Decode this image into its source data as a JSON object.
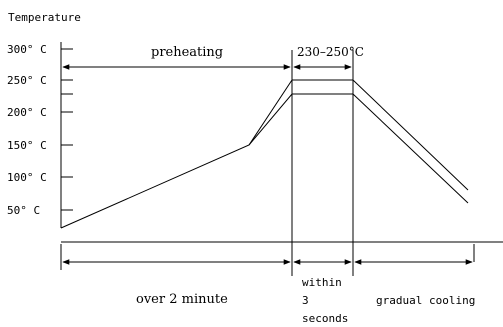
{
  "title": "Temperature",
  "y_ticks": [
    "300° C",
    "250° C",
    "200° C",
    "150° C",
    "100° C",
    "50° C"
  ],
  "labels": {
    "preheating": "preheating",
    "peak_range": "230–250°C",
    "preheat_time": "over 2 minute",
    "peak_time_1": "within",
    "peak_time_2": "3",
    "peak_time_3": "seconds",
    "cooling": "gradual cooling"
  }
}
